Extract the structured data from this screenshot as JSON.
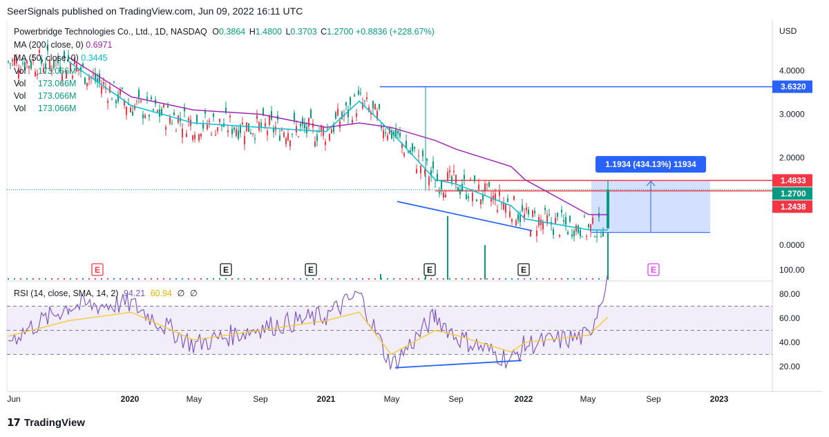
{
  "header": {
    "publisher": "SeerSignals published on TradingView.com, Jun 09, 2022 16:11 UTC"
  },
  "footer": {
    "brand": "TradingView",
    "logo_glyph": "17"
  },
  "legend": {
    "symbol": "Powerbridge Technologies Co., Ltd., 1D, NASDAQ",
    "o_label": "O",
    "o_value": "0.3864",
    "h_label": "H",
    "h_value": "1.4800",
    "l_label": "L",
    "l_value": "0.3703",
    "c_label": "C",
    "c_value": "1.2700",
    "change": "+0.8836 (+228.67%)",
    "ma200_label": "MA (200, close, 0)",
    "ma200_value": "0.6971",
    "ma50_label": "MA (50, close, 0)",
    "ma50_value": "0.3445",
    "vol_label": "Vol",
    "vol_value": "173.066M"
  },
  "rsi_legend": {
    "label": "RSI (14, close, SMA, 14, 2)",
    "rsi": "94.21",
    "sma": "60.94",
    "z1": "∅",
    "z2": "∅"
  },
  "price_axis": {
    "currency": "USD",
    "ticks": [
      "4.0000",
      "3.0000",
      "2.0000",
      "0.0000"
    ]
  },
  "rsi_axis": {
    "ticks": [
      "100.00",
      "80.00",
      "60.00",
      "40.00",
      "20.00"
    ]
  },
  "time_axis": {
    "ticks": [
      "Jun",
      "2020",
      "May",
      "Sep",
      "2021",
      "May",
      "Sep",
      "2022",
      "May",
      "Sep",
      "2023"
    ]
  },
  "price_tags": [
    {
      "value": "3.6320",
      "color": "#2962ff"
    },
    {
      "value": "1.4833",
      "color": "#f23645"
    },
    {
      "value": "1.2700",
      "color": "#089981"
    },
    {
      "value": "1.2438",
      "color": "#f23645"
    }
  ],
  "measure_box": {
    "label": "1.1934 (434.13%) 11934",
    "color": "#2962ff"
  },
  "earnings_markers": [
    "E",
    "E",
    "E",
    "E",
    "E",
    "E"
  ],
  "colors": {
    "up": "#089981",
    "down": "#f23645",
    "ma200": "#9c27b0",
    "ma50": "#00bcd4",
    "rsi": "#7e57c2",
    "rsi_sma": "#f5c93a",
    "trend": "#2962ff"
  },
  "chart_data": [
    {
      "type": "line",
      "title": "Powerbridge Technologies Co., Ltd., 1D, NASDAQ",
      "ylabel": "USD",
      "ylim": [
        0,
        4.3
      ],
      "x": [
        "2019-06",
        "2019-09",
        "2020-01",
        "2020-05",
        "2020-09",
        "2021-01",
        "2021-03",
        "2021-05",
        "2021-08",
        "2021-09",
        "2021-12",
        "2022-01",
        "2022-05",
        "2022-06"
      ],
      "series": [
        {
          "name": "MA (200, close, 0)",
          "values": [
            null,
            4.3,
            3.4,
            3.1,
            3.0,
            2.7,
            2.8,
            2.7,
            2.4,
            2.2,
            1.8,
            1.5,
            0.7,
            0.6971
          ]
        },
        {
          "name": "MA (50, close, 0)",
          "values": [
            null,
            4.2,
            3.2,
            2.8,
            2.7,
            2.6,
            3.3,
            2.6,
            1.5,
            1.4,
            0.9,
            0.6,
            0.35,
            0.3445
          ]
        }
      ],
      "ohlc_last": {
        "open": 0.3864,
        "high": 1.48,
        "low": 0.3703,
        "close": 1.27,
        "change": 0.8836,
        "change_pct": 228.67
      },
      "levels": [
        3.632,
        1.4833,
        1.27,
        1.2438
      ],
      "measure": {
        "delta": 1.1934,
        "pct": 434.13,
        "ticks": 11934
      },
      "volume_last": "173.066M"
    },
    {
      "type": "line",
      "title": "RSI (14, close, SMA, 14, 2)",
      "ylim": [
        17,
        100
      ],
      "bands": [
        30,
        50,
        70
      ],
      "x": [
        "2019-06",
        "2019-09",
        "2020-01",
        "2020-05",
        "2020-09",
        "2021-01",
        "2021-03",
        "2021-05",
        "2021-08",
        "2021-09",
        "2021-12",
        "2022-01",
        "2022-05",
        "2022-06"
      ],
      "series": [
        {
          "name": "RSI",
          "values": [
            42,
            70,
            72,
            38,
            52,
            62,
            80,
            20,
            62,
            45,
            25,
            38,
            45,
            94.21
          ]
        },
        {
          "name": "SMA",
          "values": [
            45,
            58,
            65,
            42,
            50,
            58,
            65,
            30,
            50,
            46,
            32,
            40,
            46,
            60.94
          ]
        }
      ]
    }
  ]
}
